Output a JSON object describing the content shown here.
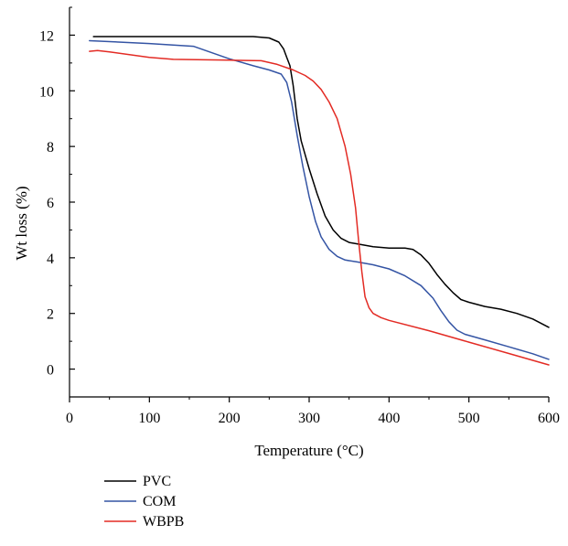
{
  "chart_data": {
    "type": "line",
    "title": "",
    "xlabel": "Temperature (°C)",
    "ylabel": "Wt loss (%)",
    "xlim": [
      0,
      600
    ],
    "ylim": [
      -1,
      13
    ],
    "xticks": [
      0,
      100,
      200,
      300,
      400,
      500,
      600
    ],
    "yticks": [
      0,
      2,
      4,
      6,
      8,
      10,
      12
    ],
    "x_tick_labels": [
      "0",
      "100",
      "200",
      "300",
      "400",
      "500",
      "600"
    ],
    "y_tick_labels": [
      "0",
      "2",
      "4",
      "6",
      "8",
      "10",
      "12"
    ],
    "grid": false,
    "legend_position": "below",
    "series": [
      {
        "name": "PVC",
        "color": "#000000",
        "points": [
          [
            30,
            11.95
          ],
          [
            100,
            11.95
          ],
          [
            200,
            11.95
          ],
          [
            230,
            11.95
          ],
          [
            250,
            11.9
          ],
          [
            262,
            11.75
          ],
          [
            268,
            11.5
          ],
          [
            272,
            11.2
          ],
          [
            276,
            10.9
          ],
          [
            280,
            10.2
          ],
          [
            285,
            9.0
          ],
          [
            290,
            8.2
          ],
          [
            300,
            7.2
          ],
          [
            310,
            6.3
          ],
          [
            320,
            5.5
          ],
          [
            330,
            5.0
          ],
          [
            340,
            4.7
          ],
          [
            350,
            4.55
          ],
          [
            360,
            4.5
          ],
          [
            380,
            4.4
          ],
          [
            400,
            4.35
          ],
          [
            420,
            4.35
          ],
          [
            430,
            4.3
          ],
          [
            440,
            4.1
          ],
          [
            450,
            3.8
          ],
          [
            460,
            3.4
          ],
          [
            470,
            3.05
          ],
          [
            480,
            2.75
          ],
          [
            490,
            2.5
          ],
          [
            500,
            2.4
          ],
          [
            520,
            2.25
          ],
          [
            540,
            2.15
          ],
          [
            560,
            2.0
          ],
          [
            580,
            1.8
          ],
          [
            600,
            1.5
          ]
        ]
      },
      {
        "name": "COM",
        "color": "#3454a4",
        "points": [
          [
            25,
            11.8
          ],
          [
            100,
            11.7
          ],
          [
            155,
            11.6
          ],
          [
            200,
            11.15
          ],
          [
            230,
            10.9
          ],
          [
            250,
            10.75
          ],
          [
            265,
            10.6
          ],
          [
            272,
            10.3
          ],
          [
            278,
            9.6
          ],
          [
            285,
            8.4
          ],
          [
            292,
            7.3
          ],
          [
            300,
            6.2
          ],
          [
            308,
            5.3
          ],
          [
            315,
            4.75
          ],
          [
            325,
            4.3
          ],
          [
            335,
            4.05
          ],
          [
            345,
            3.92
          ],
          [
            360,
            3.85
          ],
          [
            380,
            3.75
          ],
          [
            400,
            3.6
          ],
          [
            420,
            3.35
          ],
          [
            440,
            3.0
          ],
          [
            455,
            2.55
          ],
          [
            465,
            2.1
          ],
          [
            475,
            1.7
          ],
          [
            485,
            1.4
          ],
          [
            495,
            1.25
          ],
          [
            520,
            1.05
          ],
          [
            550,
            0.8
          ],
          [
            580,
            0.55
          ],
          [
            600,
            0.35
          ]
        ]
      },
      {
        "name": "WBPB",
        "color": "#e32b24",
        "points": [
          [
            25,
            11.42
          ],
          [
            35,
            11.45
          ],
          [
            50,
            11.4
          ],
          [
            100,
            11.2
          ],
          [
            130,
            11.13
          ],
          [
            200,
            11.1
          ],
          [
            240,
            11.08
          ],
          [
            260,
            10.95
          ],
          [
            280,
            10.75
          ],
          [
            295,
            10.55
          ],
          [
            305,
            10.35
          ],
          [
            315,
            10.05
          ],
          [
            325,
            9.6
          ],
          [
            335,
            9.0
          ],
          [
            345,
            8.0
          ],
          [
            352,
            7.0
          ],
          [
            358,
            5.8
          ],
          [
            362,
            4.6
          ],
          [
            366,
            3.5
          ],
          [
            370,
            2.6
          ],
          [
            375,
            2.2
          ],
          [
            380,
            2.0
          ],
          [
            390,
            1.85
          ],
          [
            400,
            1.75
          ],
          [
            450,
            1.38
          ],
          [
            500,
            0.97
          ],
          [
            550,
            0.56
          ],
          [
            600,
            0.15
          ]
        ]
      }
    ]
  }
}
